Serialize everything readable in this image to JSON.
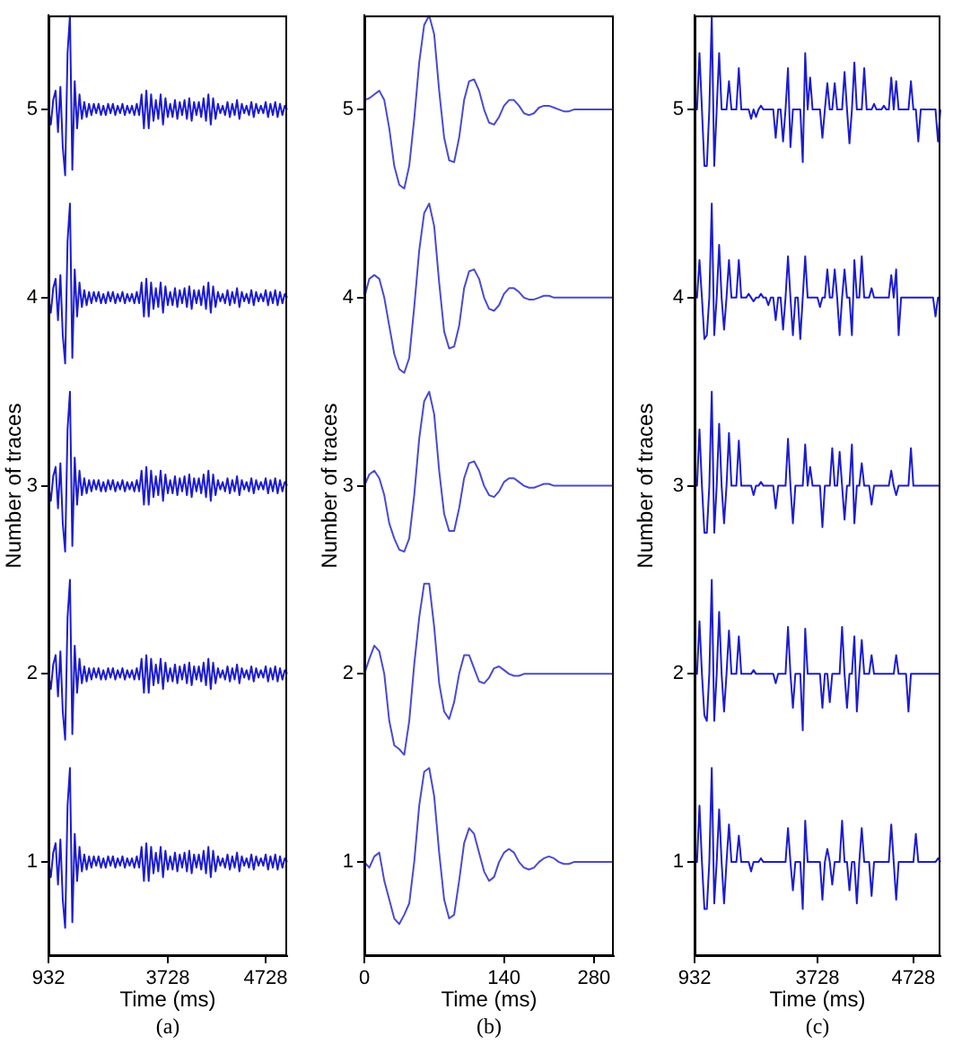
{
  "chart_data": [
    {
      "type": "line",
      "xlabel": "Time (ms)",
      "ylabel": "Number of traces",
      "marker": "none",
      "annotations": [
        "(a)"
      ],
      "ylim": [
        0.5,
        5.5
      ],
      "yticks": [
        1,
        2,
        3,
        4,
        5
      ],
      "categories": [
        "932",
        null,
        null,
        null,
        null,
        null,
        null,
        null,
        null,
        null,
        null,
        null,
        null,
        null,
        null,
        null,
        null,
        null,
        null,
        null,
        null,
        null,
        null,
        null,
        null,
        null,
        null,
        null,
        null,
        null,
        null,
        null,
        null,
        null,
        null,
        null,
        null,
        null,
        null,
        null,
        null,
        null,
        null,
        null,
        null,
        null,
        null,
        null,
        null,
        null,
        "3728",
        null,
        null,
        null,
        null,
        null,
        null,
        null,
        null,
        null,
        null,
        null,
        null,
        null,
        null,
        null,
        null,
        null,
        null,
        null,
        null,
        null,
        null,
        null,
        null,
        null,
        null,
        null,
        null,
        null,
        null,
        null,
        null,
        null,
        null,
        null,
        null,
        null,
        null,
        null,
        null,
        "4728",
        null,
        null,
        null,
        null,
        null,
        null,
        null,
        null,
        null
      ],
      "series": [
        {
          "color": "#1c1cd0",
          "values": [
            1,
            0.92,
            1.05,
            1.1,
            0.88,
            1.12,
            0.8,
            0.65,
            1.3,
            1.5,
            0.68,
            1.15,
            0.9,
            1.08,
            0.95,
            1.04,
            0.96,
            1.03,
            0.97,
            1.03,
            0.98,
            1.03,
            0.97,
            1.02,
            0.97,
            1.03,
            0.98,
            1.03,
            0.97,
            1.02,
            0.98,
            1.03,
            0.97,
            1.02,
            0.98,
            1.02,
            0.97,
            1.03,
            0.97,
            1.08,
            0.9,
            1.1,
            0.9,
            1.08,
            0.94,
            1.05,
            0.95,
            1.08,
            0.92,
            1.06,
            0.96,
            1.03,
            0.96,
            1.05,
            0.95,
            1.04,
            0.97,
            1.05,
            0.95,
            1.06,
            0.94,
            1.04,
            0.97,
            1.04,
            0.96,
            1.06,
            0.94,
            1.08,
            0.92,
            1.06,
            0.95,
            1.03,
            0.98,
            1.02,
            0.97,
            1.04,
            0.96,
            1.03,
            0.97,
            1.05,
            0.95,
            1.03,
            0.98,
            1.02,
            0.97,
            1.04,
            0.96,
            1.03,
            0.98,
            1.02,
            0.98,
            1.04,
            0.96,
            1.03,
            0.97,
            1.04,
            0.96,
            1.03,
            0.97,
            1.02,
            1
          ]
        },
        {
          "color": "#1c1cd0",
          "values": [
            2,
            1.92,
            2.05,
            2.1,
            1.88,
            2.12,
            1.8,
            1.65,
            2.3,
            2.5,
            1.68,
            2.15,
            1.9,
            2.08,
            1.95,
            2.04,
            1.96,
            2.03,
            1.97,
            2.03,
            1.98,
            2.03,
            1.97,
            2.02,
            1.97,
            2.03,
            1.98,
            2.03,
            1.97,
            2.02,
            1.98,
            2.03,
            1.97,
            2.02,
            1.98,
            2.02,
            1.97,
            2.03,
            1.97,
            2.08,
            1.9,
            2.1,
            1.9,
            2.08,
            1.94,
            2.05,
            1.95,
            2.08,
            1.92,
            2.06,
            1.96,
            2.03,
            1.96,
            2.05,
            1.95,
            2.04,
            1.97,
            2.05,
            1.95,
            2.06,
            1.94,
            2.04,
            1.97,
            2.04,
            1.96,
            2.06,
            1.94,
            2.08,
            1.92,
            2.06,
            1.95,
            2.03,
            1.98,
            2.02,
            1.97,
            2.04,
            1.96,
            2.03,
            1.97,
            2.05,
            1.95,
            2.03,
            1.98,
            2.02,
            1.97,
            2.04,
            1.96,
            2.03,
            1.98,
            2.02,
            1.98,
            2.04,
            1.96,
            2.03,
            1.97,
            2.04,
            1.96,
            2.03,
            1.97,
            2.02,
            2
          ]
        },
        {
          "color": "#1c1cd0",
          "values": [
            3,
            2.92,
            3.05,
            3.1,
            2.88,
            3.12,
            2.8,
            2.65,
            3.3,
            3.5,
            2.68,
            3.15,
            2.9,
            3.08,
            2.95,
            3.04,
            2.96,
            3.03,
            2.97,
            3.03,
            2.98,
            3.03,
            2.97,
            3.02,
            2.97,
            3.03,
            2.98,
            3.03,
            2.97,
            3.02,
            2.98,
            3.03,
            2.97,
            3.02,
            2.98,
            3.02,
            2.97,
            3.03,
            2.97,
            3.08,
            2.9,
            3.1,
            2.9,
            3.08,
            2.94,
            3.05,
            2.95,
            3.08,
            2.92,
            3.06,
            2.96,
            3.03,
            2.96,
            3.05,
            2.95,
            3.04,
            2.97,
            3.05,
            2.95,
            3.06,
            2.94,
            3.04,
            2.97,
            3.04,
            2.96,
            3.06,
            2.94,
            3.08,
            2.92,
            3.06,
            2.95,
            3.03,
            2.98,
            3.02,
            2.97,
            3.04,
            2.96,
            3.03,
            2.97,
            3.05,
            2.95,
            3.03,
            2.98,
            3.02,
            2.97,
            3.04,
            2.96,
            3.03,
            2.98,
            3.02,
            2.98,
            3.04,
            2.96,
            3.03,
            2.97,
            3.04,
            2.96,
            3.03,
            2.97,
            3.02,
            3
          ]
        },
        {
          "color": "#1c1cd0",
          "values": [
            4,
            3.92,
            4.05,
            4.1,
            3.88,
            4.12,
            3.8,
            3.65,
            4.3,
            4.5,
            3.68,
            4.15,
            3.9,
            4.08,
            3.95,
            4.04,
            3.96,
            4.03,
            3.97,
            4.03,
            3.98,
            4.03,
            3.97,
            4.02,
            3.97,
            4.03,
            3.98,
            4.03,
            3.97,
            4.02,
            3.98,
            4.03,
            3.97,
            4.02,
            3.98,
            4.02,
            3.97,
            4.03,
            3.97,
            4.08,
            3.9,
            4.1,
            3.9,
            4.08,
            3.94,
            4.05,
            3.95,
            4.08,
            3.92,
            4.06,
            3.96,
            4.03,
            3.96,
            4.05,
            3.95,
            4.04,
            3.97,
            4.05,
            3.95,
            4.06,
            3.94,
            4.04,
            3.97,
            4.04,
            3.96,
            4.06,
            3.94,
            4.08,
            3.92,
            4.06,
            3.95,
            4.03,
            3.98,
            4.02,
            3.97,
            4.04,
            3.96,
            4.03,
            3.97,
            4.05,
            3.95,
            4.03,
            3.98,
            4.02,
            3.97,
            4.04,
            3.96,
            4.03,
            3.98,
            4.02,
            3.98,
            4.04,
            3.96,
            4.03,
            3.97,
            4.04,
            3.96,
            4.03,
            3.97,
            4.02,
            4
          ]
        },
        {
          "color": "#1c1cd0",
          "values": [
            5,
            4.92,
            5.05,
            5.1,
            4.88,
            5.12,
            4.8,
            4.65,
            5.3,
            5.5,
            4.68,
            5.15,
            4.9,
            5.08,
            4.95,
            5.04,
            4.96,
            5.03,
            4.97,
            5.03,
            4.98,
            5.03,
            4.97,
            5.02,
            4.97,
            5.03,
            4.98,
            5.03,
            4.97,
            5.02,
            4.98,
            5.03,
            4.97,
            5.02,
            4.98,
            5.02,
            4.97,
            5.03,
            4.97,
            5.08,
            4.9,
            5.1,
            4.9,
            5.08,
            4.94,
            5.05,
            4.95,
            5.08,
            4.92,
            5.06,
            4.96,
            5.03,
            4.96,
            5.05,
            4.95,
            5.04,
            4.97,
            5.05,
            4.95,
            5.06,
            4.94,
            5.04,
            4.97,
            5.04,
            4.96,
            5.06,
            4.94,
            5.08,
            4.92,
            5.06,
            4.95,
            5.03,
            4.98,
            5.02,
            4.97,
            5.04,
            4.96,
            5.03,
            4.97,
            5.05,
            4.95,
            5.03,
            4.98,
            5.02,
            4.97,
            5.04,
            4.96,
            5.03,
            4.98,
            5.02,
            4.98,
            5.04,
            4.96,
            5.03,
            4.97,
            5.04,
            4.96,
            5.03,
            4.97,
            5.02,
            5
          ]
        }
      ]
    },
    {
      "type": "line",
      "xlabel": "Time (ms)",
      "ylabel": "Number of traces",
      "marker": "none",
      "annotations": [
        "(b)"
      ],
      "ylim": [
        0.5,
        5.5
      ],
      "yticks": [
        1,
        2,
        3,
        4,
        5
      ],
      "categories": [
        "0",
        null,
        null,
        null,
        null,
        null,
        null,
        null,
        null,
        null,
        null,
        null,
        null,
        null,
        null,
        null,
        null,
        null,
        null,
        null,
        null,
        null,
        null,
        null,
        null,
        null,
        null,
        null,
        "140",
        null,
        null,
        null,
        null,
        null,
        null,
        null,
        null,
        null,
        null,
        null,
        null,
        null,
        null,
        null,
        null,
        null,
        "280",
        null,
        null,
        null,
        null
      ],
      "series": [
        {
          "color": "#4a4ad0",
          "values": [
            1,
            0.97,
            1.03,
            1.05,
            0.9,
            0.8,
            0.7,
            0.67,
            0.72,
            0.78,
            1.0,
            1.3,
            1.48,
            1.5,
            1.35,
            1.05,
            0.8,
            0.7,
            0.72,
            0.9,
            1.1,
            1.18,
            1.15,
            1.05,
            0.95,
            0.9,
            0.92,
            1.0,
            1.05,
            1.07,
            1.05,
            1.0,
            0.97,
            0.96,
            0.97,
            1.0,
            1.02,
            1.03,
            1.02,
            1.0,
            0.99,
            0.99,
            1.0,
            1,
            1,
            1,
            1,
            1,
            1,
            1,
            1
          ]
        },
        {
          "color": "#4a4ad0",
          "values": [
            2,
            2.08,
            2.15,
            2.12,
            2.0,
            1.75,
            1.62,
            1.6,
            1.57,
            1.75,
            2.05,
            2.3,
            2.48,
            2.48,
            2.25,
            1.95,
            1.8,
            1.76,
            1.85,
            2.0,
            2.1,
            2.1,
            2.03,
            1.96,
            1.95,
            1.98,
            2.03,
            2.04,
            2.02,
            2.0,
            1.99,
            1.99,
            2,
            2,
            2,
            2,
            2,
            2,
            2,
            2,
            2,
            2,
            2,
            2,
            2,
            2,
            2,
            2,
            2,
            2,
            2
          ]
        },
        {
          "color": "#4a4ad0",
          "values": [
            3.0,
            3.06,
            3.08,
            3.04,
            2.95,
            2.8,
            2.72,
            2.66,
            2.65,
            2.72,
            2.95,
            3.25,
            3.45,
            3.5,
            3.38,
            3.08,
            2.85,
            2.76,
            2.76,
            2.88,
            3.04,
            3.12,
            3.13,
            3.08,
            3.0,
            2.95,
            2.94,
            2.97,
            3.02,
            3.04,
            3.04,
            3.02,
            3.0,
            2.99,
            2.99,
            3.0,
            3.01,
            3.01,
            3.0,
            3,
            3,
            3,
            3,
            3,
            3,
            3,
            3,
            3,
            3,
            3,
            3
          ]
        },
        {
          "color": "#4a4ad0",
          "values": [
            4.0,
            4.1,
            4.12,
            4.1,
            4.0,
            3.85,
            3.7,
            3.62,
            3.6,
            3.68,
            3.95,
            4.25,
            4.45,
            4.5,
            4.38,
            4.08,
            3.82,
            3.73,
            3.74,
            3.85,
            4.05,
            4.14,
            4.15,
            4.1,
            4.0,
            3.94,
            3.93,
            3.96,
            4.02,
            4.05,
            4.05,
            4.03,
            4.0,
            3.99,
            3.99,
            4.0,
            4.01,
            4.01,
            4.0,
            4,
            4,
            4,
            4,
            4,
            4,
            4,
            4,
            4,
            4,
            4,
            4
          ]
        },
        {
          "color": "#4a4ad0",
          "values": [
            5.05,
            5.06,
            5.08,
            5.1,
            5.05,
            4.9,
            4.7,
            4.6,
            4.58,
            4.7,
            4.95,
            5.25,
            5.45,
            5.5,
            5.4,
            5.1,
            4.85,
            4.73,
            4.72,
            4.85,
            5.05,
            5.15,
            5.16,
            5.1,
            5.0,
            4.93,
            4.92,
            4.96,
            5.02,
            5.05,
            5.05,
            5.02,
            4.98,
            4.97,
            4.98,
            5.01,
            5.02,
            5.02,
            5.01,
            5.0,
            4.99,
            4.99,
            5,
            5,
            5,
            5,
            5,
            5,
            5,
            5,
            5
          ]
        }
      ]
    },
    {
      "type": "line",
      "xlabel": "Time (ms)",
      "ylabel": "Number of traces",
      "marker": "none",
      "annotations": [
        "(c)"
      ],
      "ylim": [
        0.5,
        5.5
      ],
      "yticks": [
        1,
        2,
        3,
        4,
        5
      ],
      "categories": [
        "932",
        null,
        null,
        null,
        null,
        null,
        null,
        null,
        null,
        null,
        null,
        null,
        null,
        null,
        null,
        null,
        null,
        null,
        null,
        null,
        null,
        null,
        null,
        null,
        null,
        null,
        null,
        null,
        null,
        null,
        null,
        null,
        null,
        null,
        null,
        null,
        null,
        null,
        null,
        null,
        null,
        null,
        null,
        null,
        null,
        null,
        null,
        null,
        null,
        null,
        "3728",
        null,
        null,
        null,
        null,
        null,
        null,
        null,
        null,
        null,
        null,
        null,
        null,
        null,
        null,
        null,
        null,
        null,
        null,
        null,
        null,
        null,
        null,
        null,
        null,
        null,
        null,
        null,
        null,
        null,
        null,
        null,
        null,
        null,
        null,
        null,
        null,
        null,
        null,
        "4728",
        null,
        null,
        null,
        null,
        null,
        null,
        null,
        null,
        null,
        null,
        null
      ],
      "series": [
        {
          "color": "#1c1cd0",
          "values": [
            1,
            1,
            1.3,
            1,
            0.75,
            0.75,
            1,
            1.5,
            0.78,
            1,
            1.28,
            1,
            0.78,
            1,
            1.2,
            1,
            1,
            1,
            1.14,
            1,
            1,
            1,
            1,
            0.95,
            1,
            1,
            1,
            1.02,
            1,
            1,
            1,
            1,
            1,
            1,
            1,
            1,
            1,
            1,
            1.18,
            1,
            0.85,
            1,
            1,
            1,
            0.75,
            1.22,
            1,
            1,
            1,
            1,
            1,
            1,
            0.8,
            1,
            1.07,
            1,
            0.88,
            1,
            1,
            1,
            1.22,
            1,
            1,
            0.85,
            1,
            1,
            0.78,
            1,
            1.18,
            1,
            1,
            1,
            0.82,
            1,
            1,
            1,
            1,
            1,
            1,
            1,
            1.2,
            1,
            0.8,
            1,
            1,
            1,
            1,
            1,
            1,
            1,
            1.15,
            1,
            1,
            1,
            1,
            1,
            1,
            1,
            1,
            1.02,
            1
          ]
        },
        {
          "color": "#1c1cd0",
          "values": [
            2,
            2,
            2.28,
            2,
            1.78,
            1.75,
            2,
            2.5,
            1.75,
            2,
            2.33,
            2,
            1.8,
            2,
            2.23,
            2,
            2,
            2,
            2.2,
            2,
            2,
            2,
            2,
            2,
            2.02,
            2,
            2,
            2,
            2,
            2,
            2,
            2,
            2,
            1.95,
            2,
            2,
            2,
            2,
            2.25,
            2,
            1.82,
            2,
            2,
            2,
            1.7,
            2.24,
            2,
            2,
            2,
            2,
            2,
            2,
            1.82,
            2,
            2,
            1.85,
            2,
            2,
            2,
            2,
            2.25,
            2,
            1.82,
            2,
            2,
            2.2,
            1.8,
            2,
            2.18,
            2,
            2,
            2,
            2.1,
            2,
            2,
            2,
            2,
            2,
            2,
            2,
            2,
            2,
            2.1,
            2,
            2,
            2,
            2,
            1.8,
            2,
            2,
            2,
            2,
            2,
            2,
            2,
            2,
            2,
            2,
            2,
            2,
            2
          ]
        },
        {
          "color": "#1c1cd0",
          "values": [
            3,
            3,
            3.3,
            3,
            2.75,
            2.75,
            3,
            3.5,
            2.75,
            3,
            3.33,
            3,
            2.8,
            3,
            3.28,
            3,
            3,
            3,
            3.24,
            3,
            3,
            3,
            3,
            3,
            2.95,
            3,
            3,
            3.02,
            3,
            3,
            3,
            3,
            3,
            2.88,
            3,
            3,
            3,
            3,
            3.25,
            3,
            2.8,
            3,
            3,
            3,
            3,
            3.22,
            3,
            3.1,
            3,
            3,
            3,
            3,
            2.78,
            3,
            3,
            3,
            3.2,
            3,
            3,
            3.18,
            3,
            2.82,
            3,
            3,
            3.22,
            2.8,
            3,
            3,
            3.12,
            3,
            3,
            3,
            2.9,
            3,
            3,
            3,
            3,
            3,
            3,
            3,
            3.08,
            3,
            2.95,
            3,
            3,
            3,
            3,
            3,
            3.2,
            3,
            3,
            3,
            3,
            3,
            3,
            3,
            3,
            3,
            3,
            3,
            3
          ]
        },
        {
          "color": "#1c1cd0",
          "values": [
            4,
            4,
            4.2,
            4,
            3.78,
            3.8,
            4,
            4.5,
            3.8,
            4,
            4.28,
            4,
            3.83,
            4,
            4.2,
            4,
            4,
            4,
            4.2,
            4,
            4,
            4,
            4.02,
            4,
            3.98,
            4,
            4,
            4.02,
            4,
            4,
            3.96,
            4,
            4,
            3.88,
            4,
            4,
            3.83,
            4,
            4.22,
            4,
            3.8,
            4,
            4,
            3.78,
            4,
            4.22,
            4,
            4,
            4,
            4,
            4,
            3.95,
            4,
            4,
            4.15,
            4,
            4,
            4.15,
            4,
            3.8,
            4,
            4.15,
            4,
            4,
            3.8,
            4.2,
            4,
            4,
            4.22,
            4,
            4,
            4,
            4.05,
            4,
            4,
            4,
            4,
            4,
            4,
            4,
            4.12,
            4,
            4.15,
            3.8,
            4,
            4,
            4,
            4,
            4,
            4,
            4,
            4,
            4,
            4,
            4,
            4,
            4,
            4,
            3.9,
            4,
            4
          ]
        },
        {
          "color": "#1c1cd0",
          "values": [
            5,
            5,
            5.3,
            5,
            4.7,
            4.7,
            5,
            5.5,
            4.7,
            5,
            5.3,
            5,
            5,
            5,
            5.15,
            5,
            5,
            5,
            5.22,
            5,
            5,
            5,
            5,
            4.95,
            5,
            4.96,
            5,
            5.02,
            5,
            5,
            5,
            5,
            5,
            4.85,
            5,
            5,
            4.83,
            5,
            5.22,
            4.8,
            5,
            5,
            5,
            5,
            4.72,
            5.3,
            5,
            5.17,
            5,
            5,
            5,
            5,
            4.85,
            5,
            5.14,
            5,
            5,
            5.14,
            5,
            5,
            5,
            5.2,
            5,
            4.82,
            5,
            5.25,
            5,
            5,
            5,
            5.22,
            5,
            5,
            5,
            5.03,
            5,
            5,
            5,
            5.02,
            5,
            5,
            5.17,
            5,
            5.15,
            5,
            5,
            5,
            5,
            5,
            5.15,
            5,
            5,
            4.83,
            5,
            5,
            5,
            5,
            5,
            5,
            5,
            4.83,
            5
          ]
        }
      ]
    }
  ]
}
